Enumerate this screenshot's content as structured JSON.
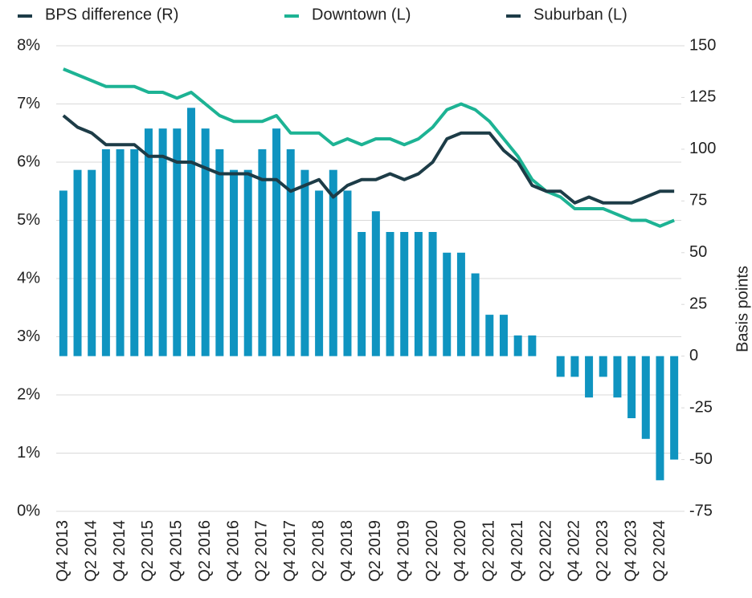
{
  "chart_data": {
    "type": "bar-line-combo",
    "categories": [
      "Q4 2013",
      null,
      "Q2 2014",
      null,
      "Q4 2014",
      null,
      "Q2 2015",
      null,
      "Q4 2015",
      null,
      "Q2 2016",
      null,
      "Q4 2016",
      null,
      "Q2 2017",
      null,
      "Q4 2017",
      null,
      "Q2 2018",
      null,
      "Q4 2018",
      null,
      "Q2 2019",
      null,
      "Q4 2019",
      null,
      "Q2 2020",
      null,
      "Q4 2020",
      null,
      "Q2 2021",
      null,
      "Q4 2021",
      null,
      "Q2 2022",
      null,
      "Q4 2022",
      null,
      "Q2 2023",
      null,
      "Q4 2023",
      null,
      "Q2 2024",
      null
    ],
    "series": [
      {
        "name": "BPS difference (R)",
        "type": "bar",
        "axis": "y2",
        "color": "#0f94c0",
        "values": [
          80,
          90,
          90,
          100,
          100,
          100,
          110,
          110,
          110,
          120,
          110,
          100,
          90,
          90,
          100,
          110,
          100,
          90,
          80,
          90,
          80,
          60,
          70,
          60,
          60,
          60,
          60,
          50,
          50,
          40,
          20,
          20,
          10,
          10,
          0,
          -10,
          -10,
          -20,
          -10,
          -20,
          -30,
          -40,
          -60,
          -50
        ]
      },
      {
        "name": "Downtown (L)",
        "type": "line",
        "axis": "y",
        "color": "#1db394",
        "values": [
          7.6,
          7.5,
          7.4,
          7.3,
          7.3,
          7.3,
          7.2,
          7.2,
          7.1,
          7.2,
          7.0,
          6.8,
          6.7,
          6.7,
          6.7,
          6.8,
          6.5,
          6.5,
          6.5,
          6.3,
          6.4,
          6.3,
          6.4,
          6.4,
          6.3,
          6.4,
          6.6,
          6.9,
          7.0,
          6.9,
          6.7,
          6.4,
          6.1,
          5.7,
          5.5,
          5.4,
          5.2,
          5.2,
          5.2,
          5.1,
          5.0,
          5.0,
          4.9,
          5.0
        ]
      },
      {
        "name": "Suburban (L)",
        "type": "line",
        "axis": "y",
        "color": "#1d3c47",
        "values": [
          6.8,
          6.6,
          6.5,
          6.3,
          6.3,
          6.3,
          6.1,
          6.1,
          6.0,
          6.0,
          5.9,
          5.8,
          5.8,
          5.8,
          5.7,
          5.7,
          5.5,
          5.6,
          5.7,
          5.4,
          5.6,
          5.7,
          5.7,
          5.8,
          5.7,
          5.8,
          6.0,
          6.4,
          6.5,
          6.5,
          6.5,
          6.2,
          6.0,
          5.6,
          5.5,
          5.5,
          5.3,
          5.4,
          5.3,
          5.3,
          5.3,
          5.4,
          5.5,
          5.5
        ]
      }
    ],
    "ylim": [
      0,
      8
    ],
    "yticks": [
      {
        "value": 0,
        "label": "0%"
      },
      {
        "value": 1,
        "label": "1%"
      },
      {
        "value": 2,
        "label": "2%"
      },
      {
        "value": 3,
        "label": "3%"
      },
      {
        "value": 4,
        "label": "4%"
      },
      {
        "value": 5,
        "label": "5%"
      },
      {
        "value": 6,
        "label": "6%"
      },
      {
        "value": 7,
        "label": "7%"
      },
      {
        "value": 8,
        "label": "8%"
      }
    ],
    "y2lim": [
      -75,
      150
    ],
    "y2ticks": [
      -75,
      -50,
      -25,
      0,
      25,
      50,
      75,
      100,
      125,
      150
    ],
    "y2label": "Basis points",
    "grid": true,
    "legend": "top"
  }
}
